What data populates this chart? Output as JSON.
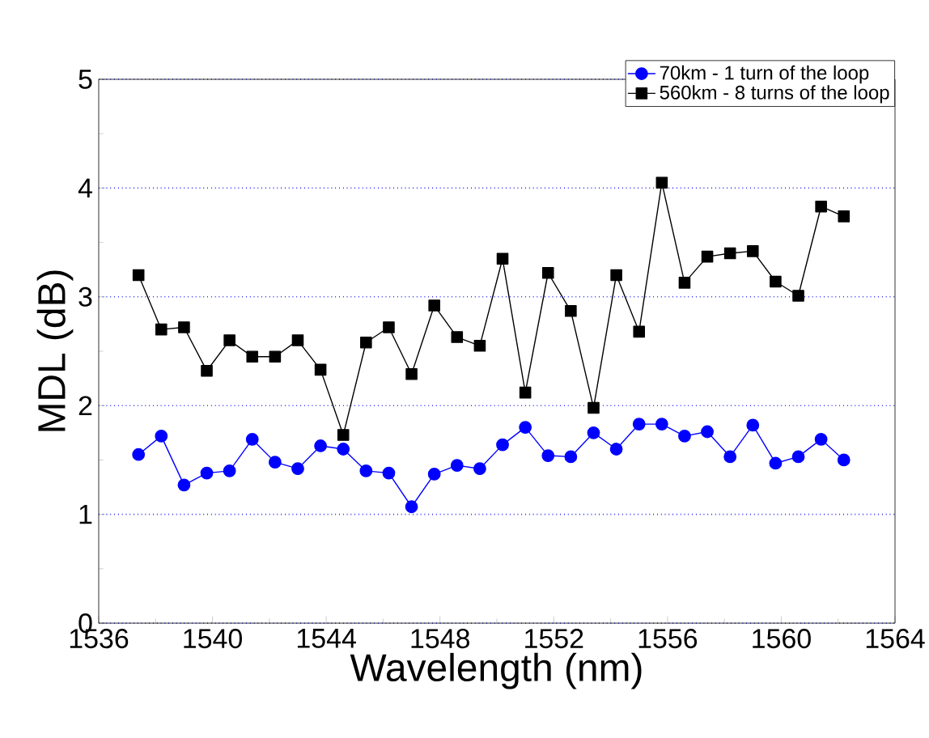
{
  "chart_data": {
    "type": "line",
    "xlabel": "Wavelength (nm)",
    "ylabel": "MDL (dB)",
    "x": [
      1537.4,
      1538.2,
      1539.0,
      1539.8,
      1540.6,
      1541.4,
      1542.2,
      1543.0,
      1543.8,
      1544.6,
      1545.4,
      1546.2,
      1547.0,
      1547.8,
      1548.6,
      1549.4,
      1550.2,
      1551.0,
      1551.8,
      1552.6,
      1553.4,
      1554.2,
      1555.0,
      1555.8,
      1556.6,
      1557.4,
      1558.2,
      1559.0,
      1559.8,
      1560.6,
      1561.4,
      1562.2
    ],
    "series": [
      {
        "name": "70km - 1 turn of the loop",
        "color": "#0000ff",
        "marker": "circle",
        "values": [
          1.55,
          1.72,
          1.27,
          1.38,
          1.4,
          1.69,
          1.48,
          1.42,
          1.63,
          1.6,
          1.4,
          1.38,
          1.07,
          1.37,
          1.45,
          1.42,
          1.64,
          1.8,
          1.54,
          1.53,
          1.75,
          1.6,
          1.83,
          1.83,
          1.72,
          1.76,
          1.53,
          1.82,
          1.47,
          1.53,
          1.69,
          1.5
        ]
      },
      {
        "name": "560km - 8 turns of the loop",
        "color": "#000000",
        "marker": "square",
        "values": [
          3.2,
          2.7,
          2.72,
          2.32,
          2.6,
          2.45,
          2.45,
          2.6,
          2.33,
          1.73,
          2.58,
          2.72,
          2.29,
          2.92,
          2.63,
          2.55,
          3.35,
          2.12,
          3.22,
          2.87,
          1.98,
          3.2,
          2.68,
          4.05,
          3.13,
          3.37,
          3.4,
          3.42,
          3.14,
          3.01,
          3.83,
          3.74
        ]
      }
    ],
    "xlim": [
      1536,
      1564
    ],
    "xticks": [
      1536,
      1540,
      1544,
      1548,
      1552,
      1556,
      1560,
      1564
    ],
    "ylim": [
      0,
      5
    ],
    "yticks": [
      0,
      1,
      2,
      3,
      4,
      5
    ],
    "grid": "y",
    "legend": "top right",
    "line_style": "solid"
  }
}
